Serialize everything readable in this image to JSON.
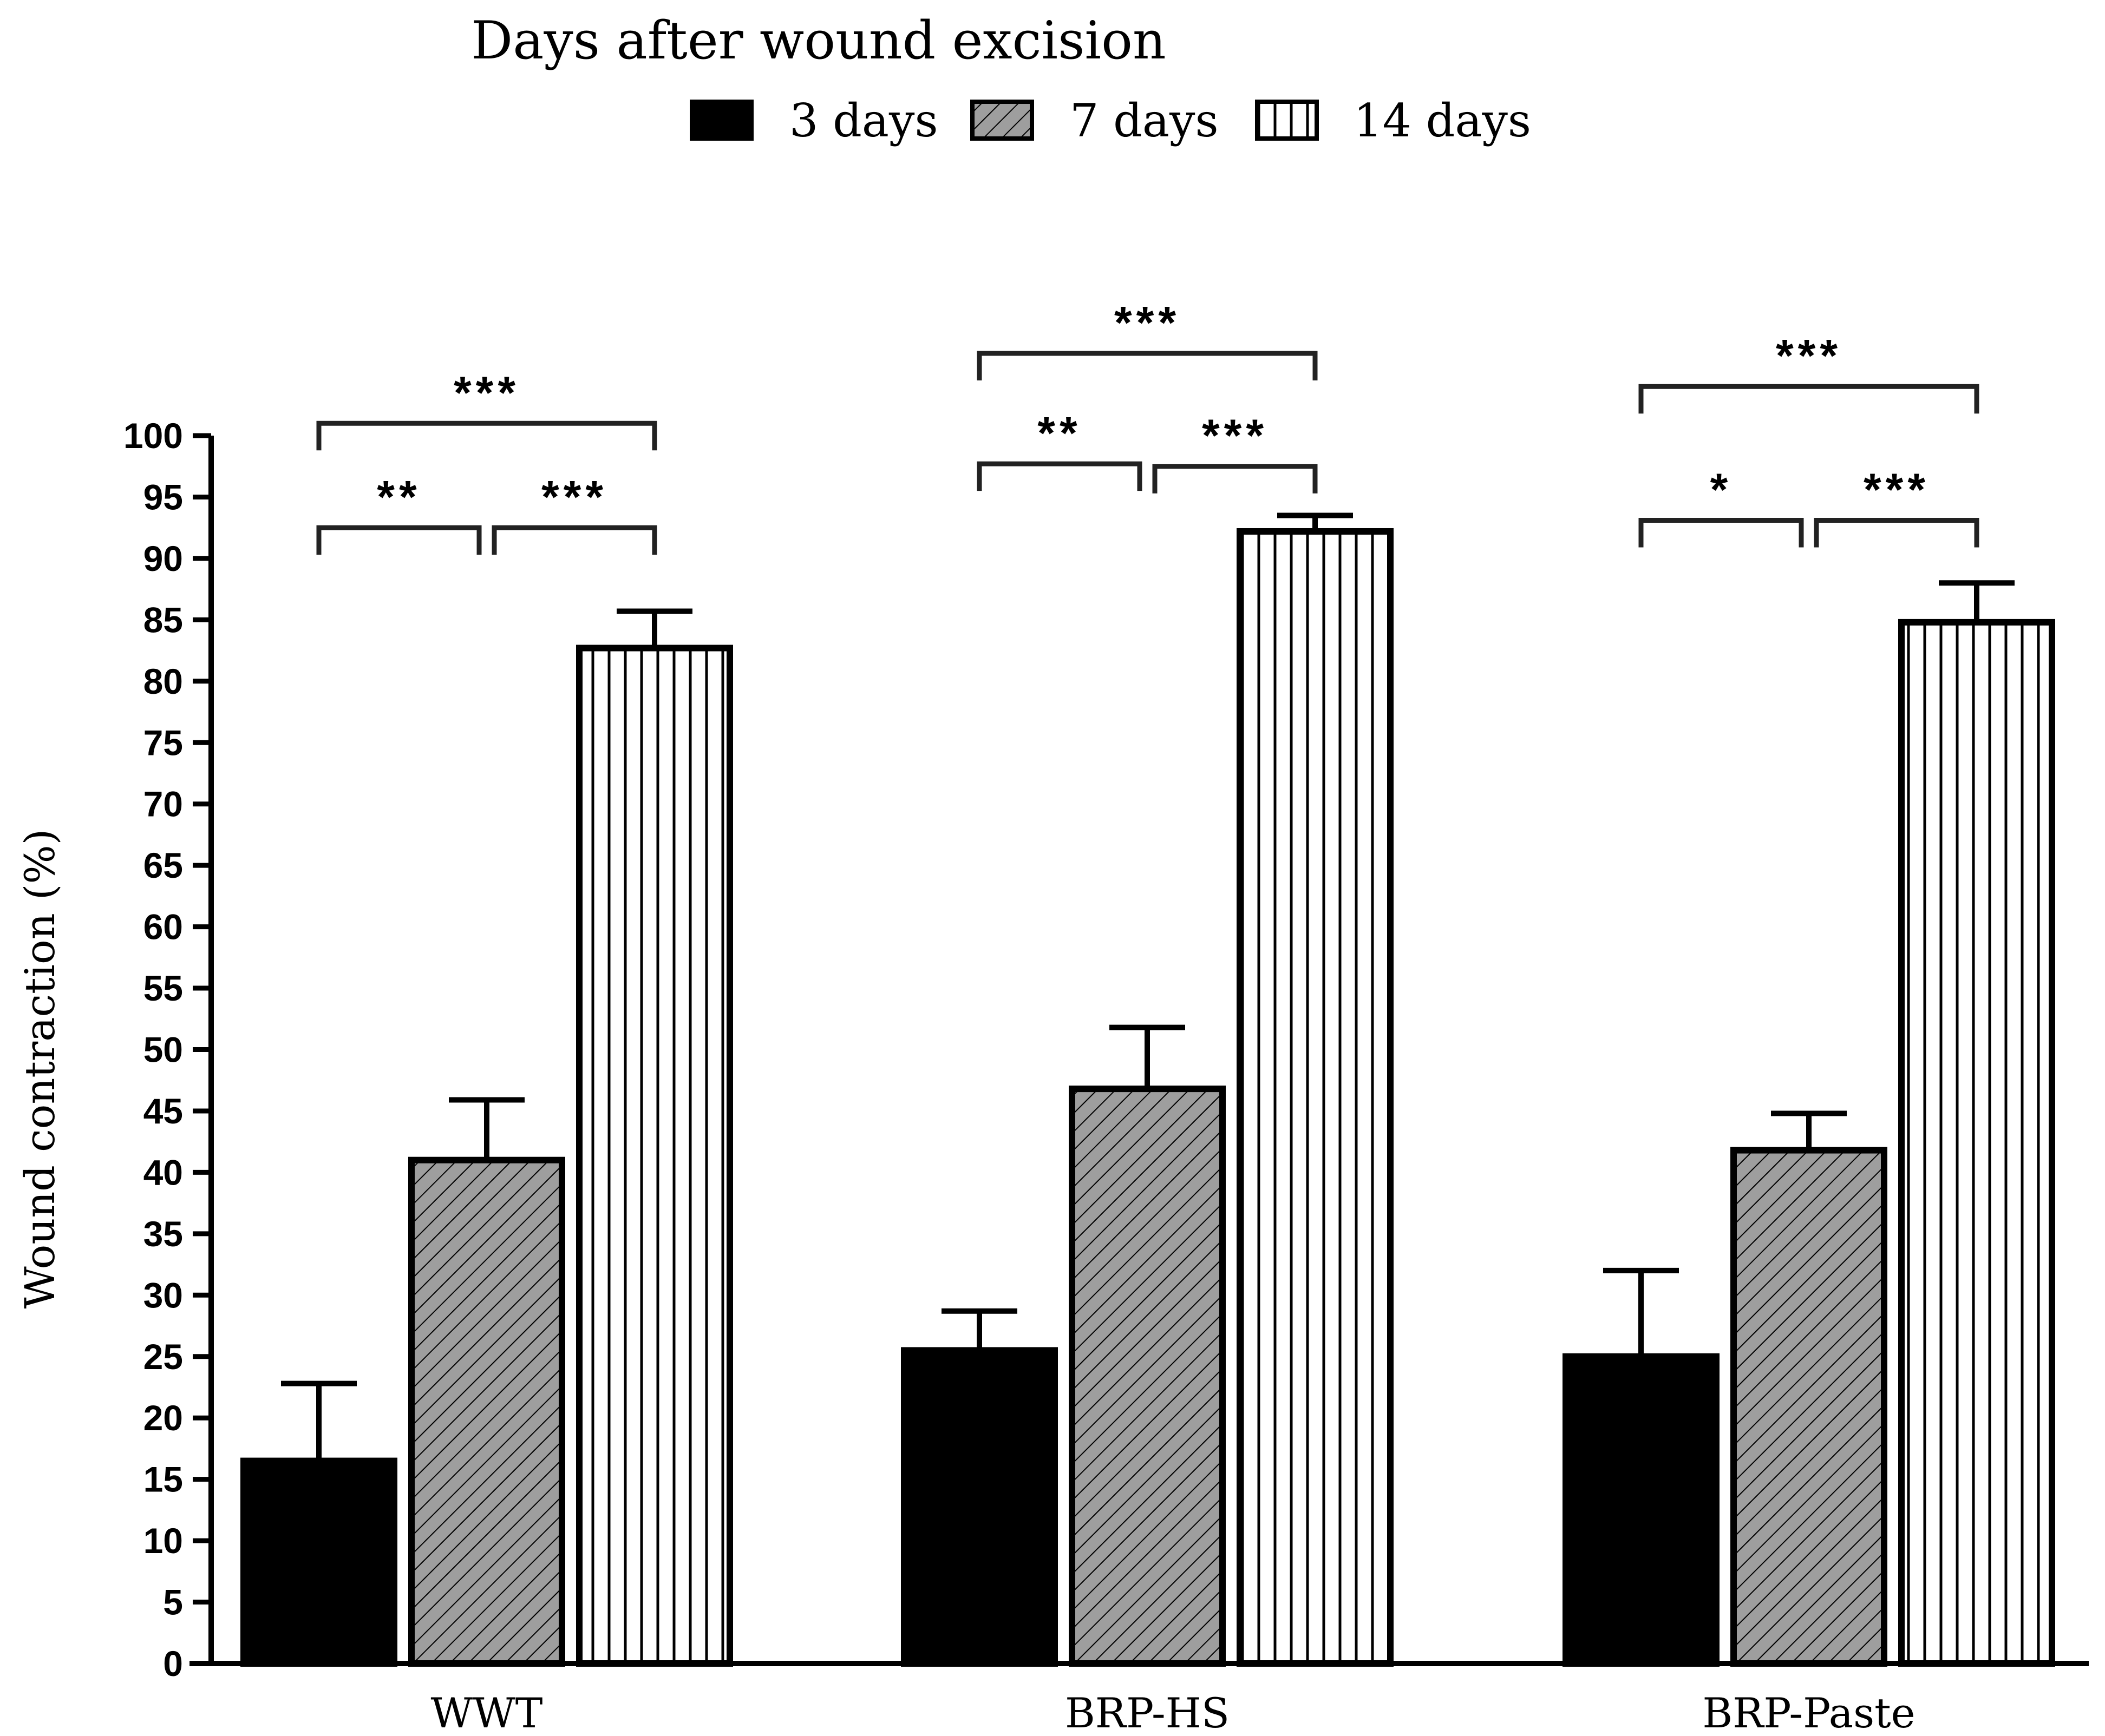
{
  "chart_data": {
    "type": "bar",
    "title": "Days after wound excision",
    "xlabel": "",
    "ylabel": "Wound contraction (%)",
    "ylim": [
      0,
      100
    ],
    "ytick_step": 5,
    "legend_position": "top-center",
    "categories": [
      "WWT",
      "BRP-HS",
      "BRP-Paste"
    ],
    "series": [
      {
        "name": "3 days",
        "pattern": "solid",
        "values": [
          16.5,
          25.5,
          25.0
        ],
        "errors": [
          6.3,
          3.2,
          7.0
        ]
      },
      {
        "name": "7 days",
        "pattern": "diagonal",
        "values": [
          41.0,
          46.8,
          41.8
        ],
        "errors": [
          4.9,
          5.0,
          3.0
        ]
      },
      {
        "name": "14 days",
        "pattern": "vertical",
        "values": [
          82.7,
          92.2,
          84.8
        ],
        "errors": [
          3.0,
          1.3,
          3.2
        ]
      }
    ],
    "significance": [
      {
        "group": 0,
        "from": 0,
        "to": 1,
        "label": "**",
        "level": 92.5
      },
      {
        "group": 0,
        "from": 1,
        "to": 2,
        "label": "***",
        "level": 92.5
      },
      {
        "group": 0,
        "from": 0,
        "to": 2,
        "label": "***",
        "level": 101.0
      },
      {
        "group": 1,
        "from": 0,
        "to": 1,
        "label": "**",
        "level": 97.7
      },
      {
        "group": 1,
        "from": 1,
        "to": 2,
        "label": "***",
        "level": 97.5
      },
      {
        "group": 1,
        "from": 0,
        "to": 2,
        "label": "***",
        "level": 106.7
      },
      {
        "group": 2,
        "from": 0,
        "to": 1,
        "label": "*",
        "level": 93.1
      },
      {
        "group": 2,
        "from": 1,
        "to": 2,
        "label": "***",
        "level": 93.1
      },
      {
        "group": 2,
        "from": 0,
        "to": 2,
        "label": "***",
        "level": 104.0
      }
    ],
    "colors": {
      "bar_stroke": "#000000",
      "solid_fill": "#000000",
      "hatch_fill": "#9e9e9e",
      "background": "#ffffff"
    }
  }
}
